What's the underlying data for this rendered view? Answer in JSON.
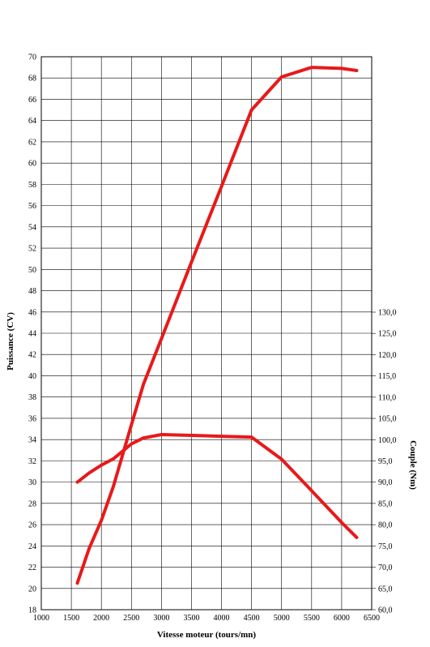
{
  "chart_data": {
    "type": "line",
    "xlabel": "Vitesse moteur (tours/mn)",
    "ylabel": "Puissance (CV)",
    "y2label": "Couple (Nm)",
    "xlim": [
      1000,
      6500
    ],
    "ylim": [
      18,
      70
    ],
    "y2lim": [
      60,
      130
    ],
    "x_ticks": [
      "1000",
      "1500",
      "2000",
      "2500",
      "3000",
      "3500",
      "4000",
      "4500",
      "5000",
      "5500",
      "6000",
      "6500"
    ],
    "y_ticks": [
      "18",
      "20",
      "22",
      "24",
      "26",
      "28",
      "30",
      "32",
      "34",
      "36",
      "38",
      "40",
      "42",
      "44",
      "46",
      "48",
      "50",
      "52",
      "54",
      "56",
      "58",
      "60",
      "62",
      "64",
      "66",
      "68",
      "70"
    ],
    "y2_ticks": [
      "60,0",
      "65,0",
      "70,0",
      "75,0",
      "80,0",
      "85,0",
      "90,0",
      "95,0",
      "100,0",
      "105,0",
      "110,0",
      "115,0",
      "120,0",
      "125,0",
      "130,0"
    ],
    "grid": true,
    "series": [
      {
        "axis": "left",
        "color": "#e8191a",
        "x": [
          1600,
          1800,
          2000,
          2200,
          2500,
          2700,
          3000,
          3500,
          4000,
          4500,
          5000,
          5500,
          6000,
          6250
        ],
        "y": [
          20.5,
          23.8,
          26.4,
          29.6,
          35.4,
          39.2,
          43.5,
          50.7,
          57.8,
          65.0,
          68.1,
          69.0,
          68.9,
          68.7
        ]
      },
      {
        "axis": "right",
        "color": "#e8191a",
        "x": [
          1600,
          1800,
          2000,
          2200,
          2500,
          2700,
          3000,
          3500,
          4000,
          4500,
          5000,
          5500,
          6000,
          6250
        ],
        "y": [
          90.0,
          92.2,
          94.0,
          95.5,
          99.0,
          100.4,
          101.2,
          101.0,
          100.8,
          100.6,
          95.4,
          88.0,
          80.5,
          77.0
        ]
      }
    ]
  }
}
